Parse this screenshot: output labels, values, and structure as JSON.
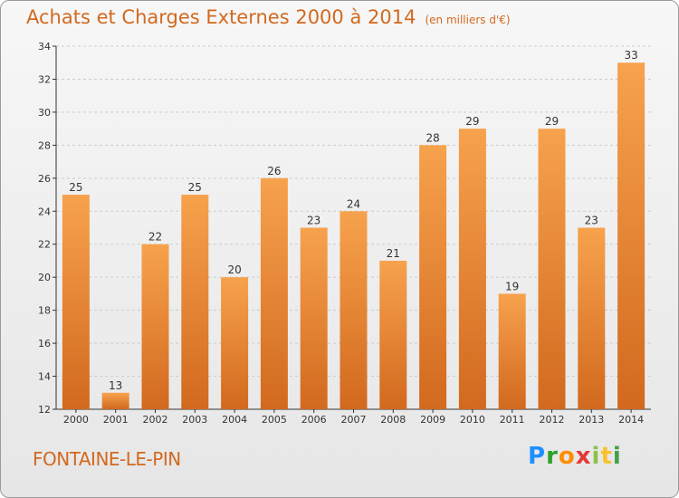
{
  "header": {
    "title": "Achats et Charges Externes 2000 à 2014",
    "subtitle": "(en milliers d'€)"
  },
  "footer": {
    "town": "FONTAINE-LE-PIN",
    "logo": "Proxiti"
  },
  "colors": {
    "bar_light": "#f7a24d",
    "bar_dark": "#d2691e",
    "title": "#d2691e",
    "grid": "#cccccc"
  },
  "chart_data": {
    "type": "bar",
    "title": "Achats et Charges Externes 2000 à 2014",
    "subtitle": "(en milliers d'€)",
    "categories": [
      "2000",
      "2001",
      "2002",
      "2003",
      "2004",
      "2005",
      "2006",
      "2007",
      "2008",
      "2009",
      "2010",
      "2011",
      "2012",
      "2013",
      "2014"
    ],
    "values": [
      25,
      13,
      22,
      25,
      20,
      26,
      23,
      24,
      21,
      28,
      29,
      19,
      29,
      23,
      33
    ],
    "ylim": [
      12,
      34
    ],
    "yticks": [
      12,
      14,
      16,
      18,
      20,
      22,
      24,
      26,
      28,
      30,
      32,
      34
    ],
    "grid": true,
    "xlabel": "",
    "ylabel": ""
  }
}
